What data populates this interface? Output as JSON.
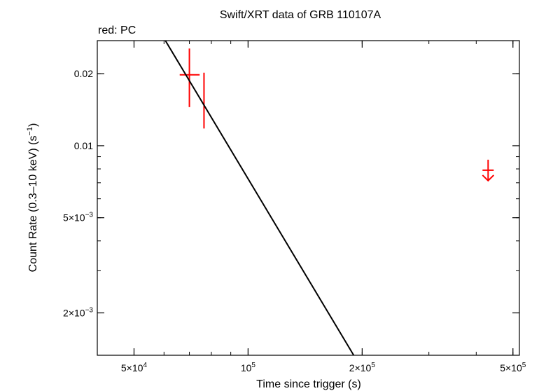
{
  "chart_data": {
    "type": "scatter",
    "title": "Swift/XRT data of GRB 110107A",
    "subtitle": "red: PC",
    "xlabel": "Time since trigger (s)",
    "ylabel": "Count Rate (0.3–10 keV) (s",
    "ylabel_sup": "−1",
    "ylabel_end": ")",
    "x_scale": "log",
    "y_scale": "log",
    "xlim": [
      40000,
      520000
    ],
    "ylim": [
      0.00133,
      0.0275
    ],
    "x_ticks": [
      {
        "value": 50000,
        "mantissa": "5×10",
        "exp": "4"
      },
      {
        "value": 100000,
        "mantissa": "10",
        "exp": "5"
      },
      {
        "value": 200000,
        "mantissa": "2×10",
        "exp": "5"
      },
      {
        "value": 500000,
        "mantissa": "5×10",
        "exp": "5"
      }
    ],
    "y_ticks": [
      {
        "value": 0.002,
        "mantissa": "2×10",
        "exp": "−3"
      },
      {
        "value": 0.005,
        "mantissa": "5×10",
        "exp": "−3"
      },
      {
        "value": 0.01,
        "mantissa": "0.01",
        "exp": ""
      },
      {
        "value": 0.02,
        "mantissa": "0.02",
        "exp": ""
      }
    ],
    "series": [
      {
        "type": "errorbars",
        "color": "#ff0000",
        "points": [
          {
            "x": 70000,
            "xerr_lo": 66000,
            "xerr_hi": 74500,
            "y": 0.0198,
            "y_lo": 0.0145,
            "y_hi": 0.0255
          },
          {
            "x": 76500,
            "xerr_lo": 76500,
            "xerr_hi": 76500,
            "y": 0.0162,
            "y_lo": 0.0118,
            "y_hi": 0.0202
          }
        ]
      },
      {
        "type": "upper_limit",
        "color": "#ff0000",
        "points": [
          {
            "x": 430000,
            "y": 0.0079
          }
        ]
      },
      {
        "type": "model",
        "color": "#000000",
        "points": [
          {
            "x": 60500,
            "y": 0.0275
          },
          {
            "x": 190000,
            "y": 0.00133
          }
        ]
      }
    ]
  }
}
